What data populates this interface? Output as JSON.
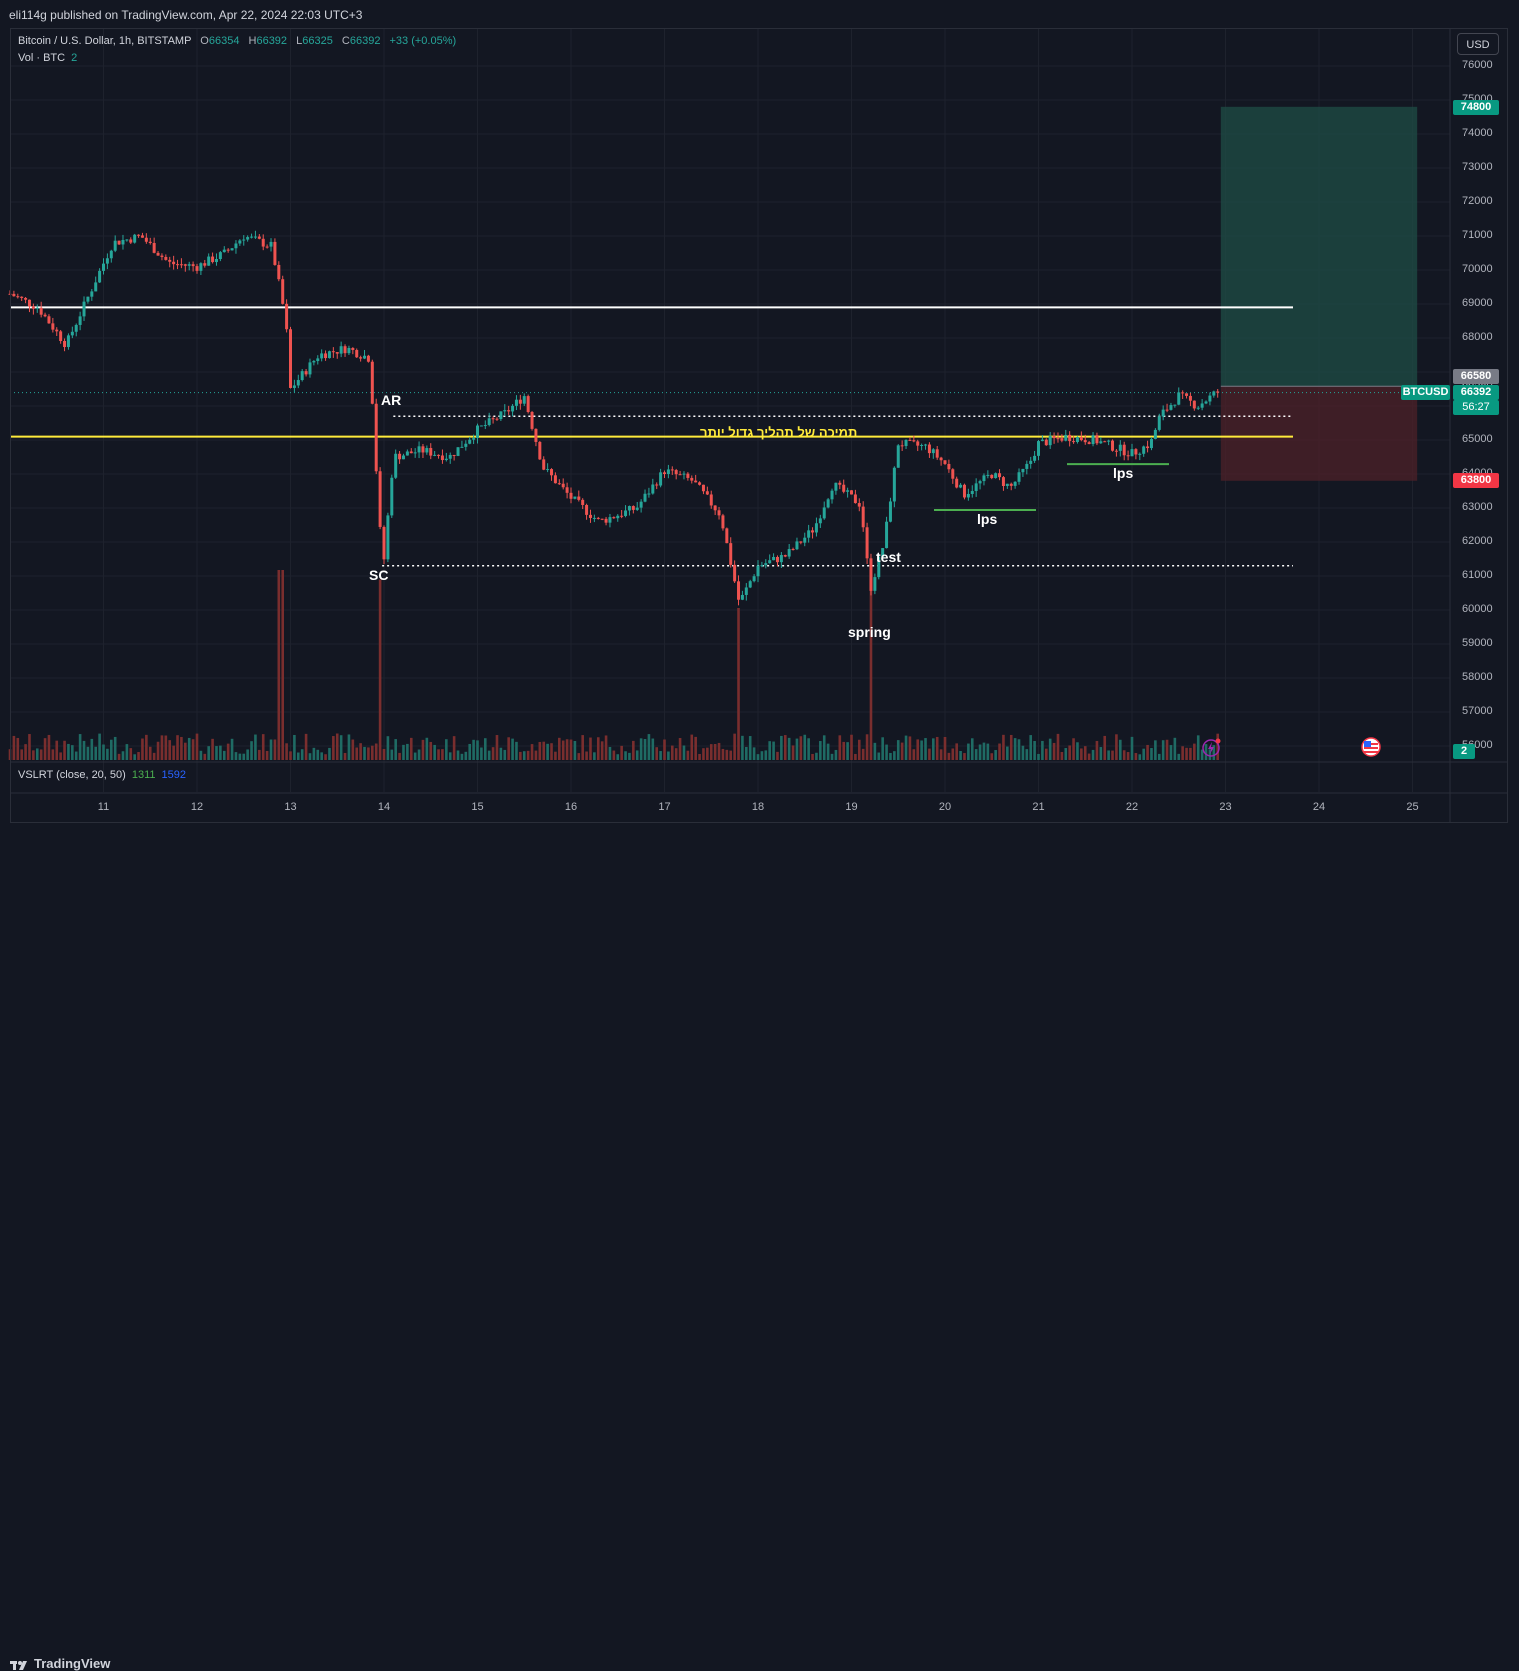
{
  "header": {
    "publisher_line": "eli114g published on TradingView.com, Apr 22, 2024 22:03 UTC+3"
  },
  "legend": {
    "symbol": "Bitcoin / U.S. Dollar, 1h, BITSTAMP",
    "o_label": "O",
    "o": "66354",
    "h_label": "H",
    "h": "66392",
    "l_label": "L",
    "l": "66325",
    "c_label": "C",
    "c": "66392",
    "change": "+33 (+0.05%)",
    "vol_label": "Vol · BTC",
    "vol_value": "2"
  },
  "indicator": {
    "name": "VSLRT (close, 20, 50)",
    "value1": "1311",
    "value2": "1592"
  },
  "price_axis": {
    "currency": "USD",
    "labels": [
      "76000",
      "75000",
      "74000",
      "73000",
      "72000",
      "71000",
      "70000",
      "69000",
      "68000",
      "66580",
      "65000",
      "64000",
      "63000",
      "62000",
      "61000",
      "60000",
      "59000",
      "58000",
      "57000",
      "56000"
    ]
  },
  "tags": {
    "target": "74800",
    "entry": "66580",
    "symbol": "BTCUSD",
    "last": "66392",
    "countdown": "56:27",
    "stop": "63800",
    "vol": "2"
  },
  "time_axis": [
    "11",
    "12",
    "13",
    "14",
    "15",
    "16",
    "17",
    "18",
    "19",
    "20",
    "21",
    "22",
    "23",
    "24",
    "25"
  ],
  "annotations": {
    "ar": "AR",
    "sc": "SC",
    "spring": "spring",
    "test": "test",
    "lps1": "lps",
    "lps2": "lps",
    "hebrew": "תמיכה של תהליך גדול יותר"
  },
  "colors": {
    "background": "#131722",
    "up": "#26a69a",
    "down": "#ef5350",
    "support": "#ffeb3b",
    "resistance": "#ffffff",
    "lps_line": "#4caf50",
    "target_zone": "#1e4a44",
    "stop_zone": "#4a2028"
  },
  "chart_data": {
    "type": "candlestick",
    "title": "Bitcoin / U.S. Dollar, 1h, BITSTAMP",
    "x_range": [
      "Apr 10",
      "Apr 25"
    ],
    "ylim": [
      55500,
      76500
    ],
    "x_ticks": [
      "11",
      "12",
      "13",
      "14",
      "15",
      "16",
      "17",
      "18",
      "19",
      "20",
      "21",
      "22",
      "23",
      "24",
      "25"
    ],
    "price_path": [
      {
        "day": 10.0,
        "price": 69300
      },
      {
        "day": 10.3,
        "price": 68900
      },
      {
        "day": 10.6,
        "price": 67800
      },
      {
        "day": 10.9,
        "price": 69600
      },
      {
        "day": 11.1,
        "price": 70800
      },
      {
        "day": 11.4,
        "price": 71000
      },
      {
        "day": 11.7,
        "price": 70200
      },
      {
        "day": 12.0,
        "price": 70100
      },
      {
        "day": 12.3,
        "price": 70500
      },
      {
        "day": 12.5,
        "price": 71000
      },
      {
        "day": 12.8,
        "price": 70700
      },
      {
        "day": 12.95,
        "price": 68500
      },
      {
        "day": 13.0,
        "price": 66500
      },
      {
        "day": 13.3,
        "price": 67500
      },
      {
        "day": 13.6,
        "price": 67700
      },
      {
        "day": 13.85,
        "price": 67400
      },
      {
        "day": 13.95,
        "price": 62500
      },
      {
        "day": 14.0,
        "price": 61500
      },
      {
        "day": 14.1,
        "price": 64500
      },
      {
        "day": 14.4,
        "price": 64700
      },
      {
        "day": 14.7,
        "price": 64500
      },
      {
        "day": 15.0,
        "price": 65300
      },
      {
        "day": 15.3,
        "price": 65800
      },
      {
        "day": 15.5,
        "price": 66300
      },
      {
        "day": 15.7,
        "price": 64200
      },
      {
        "day": 16.0,
        "price": 63300
      },
      {
        "day": 16.3,
        "price": 62600
      },
      {
        "day": 16.7,
        "price": 63000
      },
      {
        "day": 17.0,
        "price": 64100
      },
      {
        "day": 17.3,
        "price": 63800
      },
      {
        "day": 17.6,
        "price": 62800
      },
      {
        "day": 17.8,
        "price": 60200
      },
      {
        "day": 18.0,
        "price": 61300
      },
      {
        "day": 18.3,
        "price": 61600
      },
      {
        "day": 18.6,
        "price": 62400
      },
      {
        "day": 18.8,
        "price": 63700
      },
      {
        "day": 19.1,
        "price": 63100
      },
      {
        "day": 19.2,
        "price": 60600
      },
      {
        "day": 19.35,
        "price": 62000
      },
      {
        "day": 19.5,
        "price": 64900
      },
      {
        "day": 19.8,
        "price": 64800
      },
      {
        "day": 20.0,
        "price": 64300
      },
      {
        "day": 20.2,
        "price": 63400
      },
      {
        "day": 20.5,
        "price": 64000
      },
      {
        "day": 20.7,
        "price": 63600
      },
      {
        "day": 20.9,
        "price": 64300
      },
      {
        "day": 21.0,
        "price": 64900
      },
      {
        "day": 21.3,
        "price": 65100
      },
      {
        "day": 21.6,
        "price": 65000
      },
      {
        "day": 21.8,
        "price": 64800
      },
      {
        "day": 22.0,
        "price": 64600
      },
      {
        "day": 22.2,
        "price": 64900
      },
      {
        "day": 22.3,
        "price": 65700
      },
      {
        "day": 22.5,
        "price": 66300
      },
      {
        "day": 22.7,
        "price": 66000
      },
      {
        "day": 22.9,
        "price": 66392
      }
    ],
    "last_price": 66392,
    "levels": [
      {
        "price": 68900,
        "style": "solid",
        "color": "#ffffff"
      },
      {
        "price": 65100,
        "style": "solid",
        "color": "#ffeb3b"
      },
      {
        "price": 65700,
        "style": "dotted",
        "color": "#ffffff"
      },
      {
        "price": 61300,
        "style": "dotted",
        "color": "#ffffff"
      }
    ],
    "position": {
      "entry": 66580,
      "target": 74800,
      "stop": 63800
    },
    "volume_spikes": [
      {
        "day": 12.9,
        "value": 2000
      },
      {
        "day": 13.95,
        "value": 1900
      },
      {
        "day": 17.8,
        "value": 1600
      },
      {
        "day": 19.2,
        "value": 1800
      }
    ]
  }
}
